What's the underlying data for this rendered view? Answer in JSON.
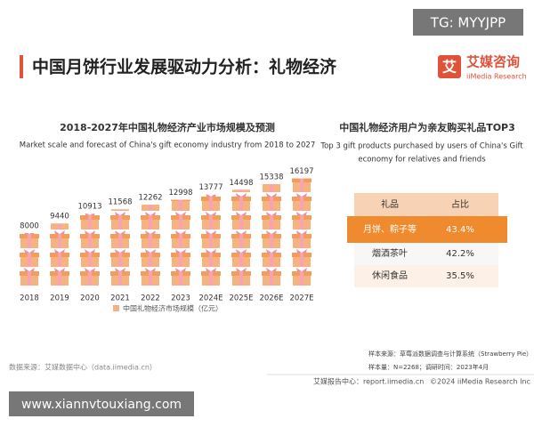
{
  "header": {
    "title": "中国月饼行业发展驱动力分析：礼物经济",
    "logo": "艾媒咨询",
    "logo_sub": "iiMedia Research",
    "watermark": "TG: MYYJPP"
  },
  "chart_data": {
    "type": "pictogram",
    "title": "2018-2027年中国礼物经济产业市场规模及预测",
    "subtitle": "Market scale and forecast of China's gift economy industry from 2018 to 2027",
    "categories": [
      "2018",
      "2019",
      "2020",
      "2021",
      "2022",
      "2023",
      "2024E",
      "2025E",
      "2026E",
      "2027E"
    ],
    "series": [
      {
        "name": "中国礼物经济市场规模（亿元）",
        "color": "#f4b183",
        "values": [
          8000,
          9440,
          10913,
          11568,
          12262,
          12998,
          13777,
          14498,
          15338,
          16197
        ]
      }
    ]
  },
  "table": {
    "title": "中国礼物经济用户为亲友购买礼品TOP3",
    "subtitle": [
      "Top 3 gift products purchased by users of China's Gift",
      "economy for relatives and friends"
    ],
    "header": [
      "礼品",
      "占比"
    ],
    "rows": [
      [
        "月饼、粽子等",
        "43.4%"
      ],
      [
        "烟酒茶叶",
        "42.2%"
      ],
      [
        "休闲食品",
        "35.5%"
      ]
    ]
  },
  "footer": {
    "source": "数据来源：艾媒数据中心（data.iimedia.cn）",
    "sample_source": "样本来源：草莓派数据调查与计算系统（Strawberry Pie）",
    "sample": "样本量：N=2268；调研时间：2023年4月",
    "report_center": "艾媒报告中心：report.iimedia.cn",
    "copyright": "©2024  iiMedia Research  Inc",
    "watermark": "www.xiannvtouxiang.com"
  }
}
